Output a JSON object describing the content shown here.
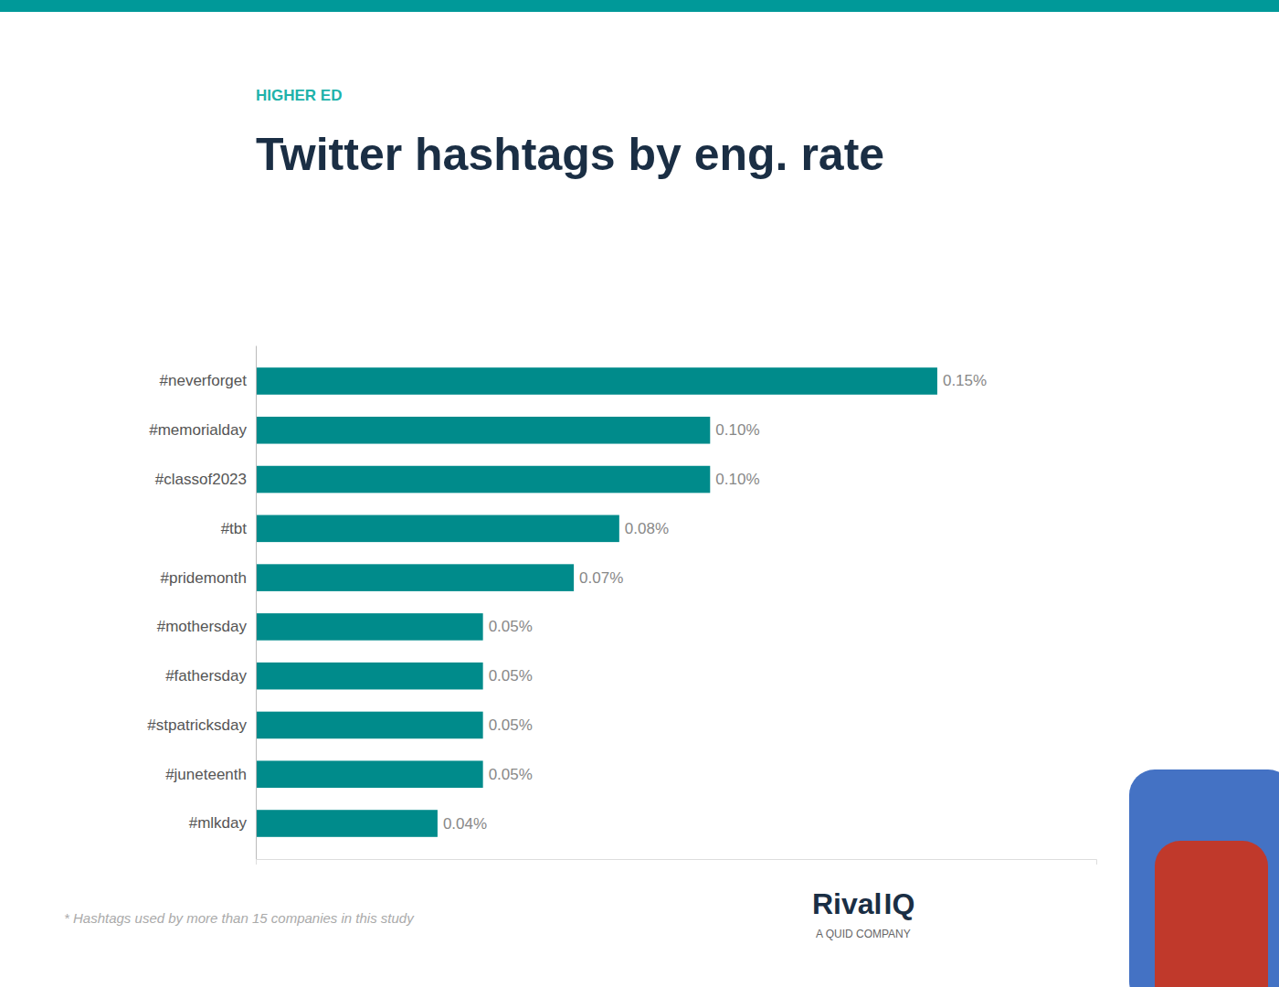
{
  "chart_data": {
    "type": "bar",
    "orientation": "horizontal",
    "title": "Twitter hashtags by eng. rate",
    "subtitle": "HIGHER ED",
    "categories": [
      "#neverforget",
      "#memorialday",
      "#classof2023",
      "#tbt",
      "#pridemonth",
      "#mothersday",
      "#fathersday",
      "#stpatricksday",
      "#juneteenth",
      "#mlkday"
    ],
    "values": [
      0.15,
      0.1,
      0.1,
      0.08,
      0.07,
      0.05,
      0.05,
      0.05,
      0.05,
      0.04
    ],
    "value_labels": [
      "0.15%",
      "0.10%",
      "0.10%",
      "0.08%",
      "0.07%",
      "0.05%",
      "0.05%",
      "0.05%",
      "0.05%",
      "0.04%"
    ],
    "data_labels": true,
    "color": "#008B8B",
    "xlim": [
      0,
      0.185
    ],
    "tick_labels": "y",
    "annotations": [
      "* Hashtags used by more than 15 companies in this study",
      "Rival",
      "IQ",
      "A QUID COMPANY"
    ]
  }
}
